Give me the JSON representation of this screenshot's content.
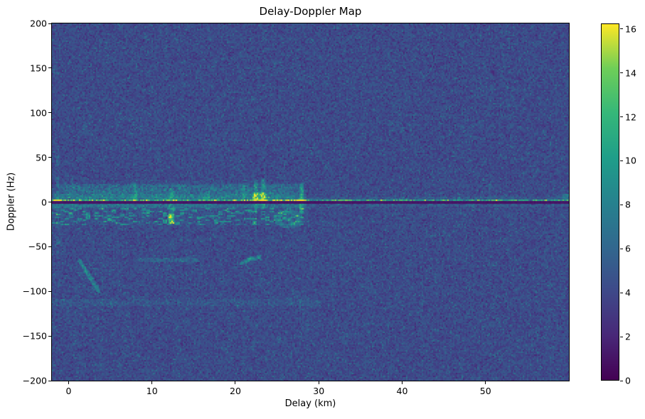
{
  "chart_data": {
    "type": "heatmap",
    "title": "Delay-Doppler Map",
    "xlabel": "Delay (km)",
    "ylabel": "Doppler (Hz)",
    "xlim": [
      -2,
      60
    ],
    "ylim": [
      -200,
      200
    ],
    "xticks": [
      0,
      10,
      20,
      30,
      40,
      50
    ],
    "yticks": [
      200,
      150,
      100,
      50,
      0,
      -50,
      -100,
      -150,
      -200
    ],
    "grid": false,
    "colorbar": {
      "vmin": 0,
      "vmax": 16.25,
      "ticks": [
        0,
        2,
        4,
        6,
        8,
        10,
        12,
        14,
        16
      ],
      "colormap": "viridis",
      "stops": [
        "#440154",
        "#482878",
        "#3e4989",
        "#31688e",
        "#26828e",
        "#1f9e89",
        "#35b779",
        "#6ece58",
        "#fde725"
      ]
    },
    "noise": {
      "base": 3.1,
      "spread": 2.3,
      "speckle_chance": 0.055,
      "speckle_boost": 1.9,
      "dark_chance": 0.1,
      "dark_drop": 1.2,
      "seed": 7
    },
    "features": [
      {
        "name": "upper-diffuse-band",
        "kind": "rect",
        "delay": [
          -2,
          28.6
        ],
        "doppler": [
          1.8,
          21.5
        ],
        "amp": 2.1,
        "jitter": 1.4,
        "fade": true
      },
      {
        "name": "upper-inner-band",
        "kind": "rect",
        "delay": [
          -2,
          28.6
        ],
        "doppler": [
          1.8,
          9
        ],
        "amp": 1.0,
        "jitter": 0.8
      },
      {
        "name": "lower-band",
        "kind": "rect",
        "delay": [
          -2,
          28.6
        ],
        "doppler": [
          -7.5,
          -1.2
        ],
        "amp": 1.9,
        "jitter": 1.1
      },
      {
        "name": "lower-speckle-band",
        "kind": "rect",
        "delay": [
          -2,
          28.6
        ],
        "doppler": [
          -26,
          -7.5
        ],
        "amp": 2.4,
        "jitter": 1.2,
        "speckle": 0.27
      },
      {
        "name": "halo-above-line",
        "kind": "rect",
        "delay": [
          -2,
          60
        ],
        "doppler": [
          2,
          5.5
        ],
        "amp": 0.8,
        "jitter": 0.6
      },
      {
        "name": "halo-below-line",
        "kind": "rect",
        "delay": [
          -2,
          60
        ],
        "doppler": [
          -5.5,
          -1.2
        ],
        "amp": 0.9,
        "jitter": 0.6
      },
      {
        "name": "faint-band-neg112",
        "kind": "rect",
        "delay": [
          -2,
          30
        ],
        "doppler": [
          -116,
          -109
        ],
        "amp": 0.65,
        "jitter": 0.5
      },
      {
        "name": "vstreak-8km",
        "kind": "vline",
        "delay": 8.0,
        "width": 0.55,
        "doppler": [
          -2,
          22
        ],
        "amp": 2.6
      },
      {
        "name": "vstreak-12km",
        "kind": "vline",
        "delay": 12.35,
        "width": 0.65,
        "doppler": [
          -25,
          16
        ],
        "amp": 3.0
      },
      {
        "name": "hotspot-12km",
        "kind": "vline",
        "delay": 12.3,
        "width": 0.7,
        "doppler": [
          -24,
          -13
        ],
        "amp": 6.8
      },
      {
        "name": "vstreak-16km",
        "kind": "vline",
        "delay": 16.7,
        "width": 0.5,
        "doppler": [
          -3,
          12
        ],
        "amp": 2.2
      },
      {
        "name": "vstreak-21km",
        "kind": "vline",
        "delay": 21.0,
        "width": 0.5,
        "doppler": [
          0,
          20
        ],
        "amp": 2.5
      },
      {
        "name": "vstreak-22km",
        "kind": "vline",
        "delay": 22.5,
        "width": 0.55,
        "doppler": [
          -12,
          25
        ],
        "amp": 3.2
      },
      {
        "name": "hotspot-22km",
        "kind": "rect",
        "delay": [
          22.1,
          23.7
        ],
        "doppler": [
          0.5,
          11
        ],
        "amp": 4.5,
        "jitter": 2.0
      },
      {
        "name": "vstreak-23km",
        "kind": "vline",
        "delay": 23.35,
        "width": 0.55,
        "doppler": [
          -9,
          27
        ],
        "amp": 3.6
      },
      {
        "name": "vstreak-28km",
        "kind": "vline",
        "delay": 27.95,
        "width": 0.6,
        "doppler": [
          -13,
          22
        ],
        "amp": 4.2
      },
      {
        "name": "left-edge-dotted-column",
        "kind": "vline",
        "delay": -1.3,
        "width": 0.4,
        "doppler": [
          -57,
          52
        ],
        "amp": 2.1,
        "dash": true
      },
      {
        "name": "right-edge-streak",
        "kind": "vline",
        "delay": 59.6,
        "width": 0.9,
        "doppler": [
          0,
          9
        ],
        "amp": 3.6
      },
      {
        "name": "tick-streak-46km",
        "kind": "vline",
        "delay": 46.8,
        "width": 0.45,
        "doppler": [
          1.5,
          6.5
        ],
        "amp": 2.3
      },
      {
        "name": "diagonal-streak",
        "kind": "segment",
        "from": [
          1.35,
          -66
        ],
        "to": [
          3.6,
          -100
        ],
        "width": 0.5,
        "amp": 4.0
      },
      {
        "name": "hook-arc-left",
        "kind": "segment",
        "from": [
          20.8,
          -68.5
        ],
        "to": [
          21.7,
          -64.2
        ],
        "width": 0.5,
        "amp": 3.5
      },
      {
        "name": "hook-arc-right",
        "kind": "segment",
        "from": [
          21.7,
          -64.2
        ],
        "to": [
          22.9,
          -61.8
        ],
        "width": 0.5,
        "amp": 3.7
      },
      {
        "name": "faint-line-neg65",
        "kind": "rect",
        "delay": [
          8.5,
          15.5
        ],
        "doppler": [
          -66.5,
          -63
        ],
        "amp": 1.5,
        "jitter": 0.7
      },
      {
        "name": "ring-blob-26km",
        "kind": "ring",
        "center": [
          26.4,
          -19
        ],
        "rx": 1.35,
        "ry": 8,
        "amp": 2.2,
        "thick": 0.3
      },
      {
        "name": "ring-blob-fill",
        "kind": "rect",
        "delay": [
          25.2,
          27.6
        ],
        "doppler": [
          -26,
          -12
        ],
        "amp": 0.7,
        "jitter": 0.5
      },
      {
        "name": "zero-doppler-bright-line",
        "kind": "rect",
        "delay": [
          -2,
          60
        ],
        "doppler": [
          0.4,
          2.0
        ],
        "amp": 6.2,
        "jitter": 2.6
      },
      {
        "name": "zero-line-boost-left",
        "kind": "rect",
        "delay": [
          -2,
          0.8
        ],
        "doppler": [
          0.2,
          2.2
        ],
        "amp": 2.8,
        "jitter": 1.5
      },
      {
        "name": "zero-line-boost-mid",
        "kind": "rect",
        "delay": [
          22.8,
          28.5
        ],
        "doppler": [
          0.2,
          2.2
        ],
        "amp": 3.4,
        "jitter": 1.8
      },
      {
        "name": "zero-doppler-dark-line",
        "kind": "rect",
        "delay": [
          -2,
          60
        ],
        "doppler": [
          -1.3,
          0.4
        ],
        "set": 1.0
      }
    ]
  }
}
